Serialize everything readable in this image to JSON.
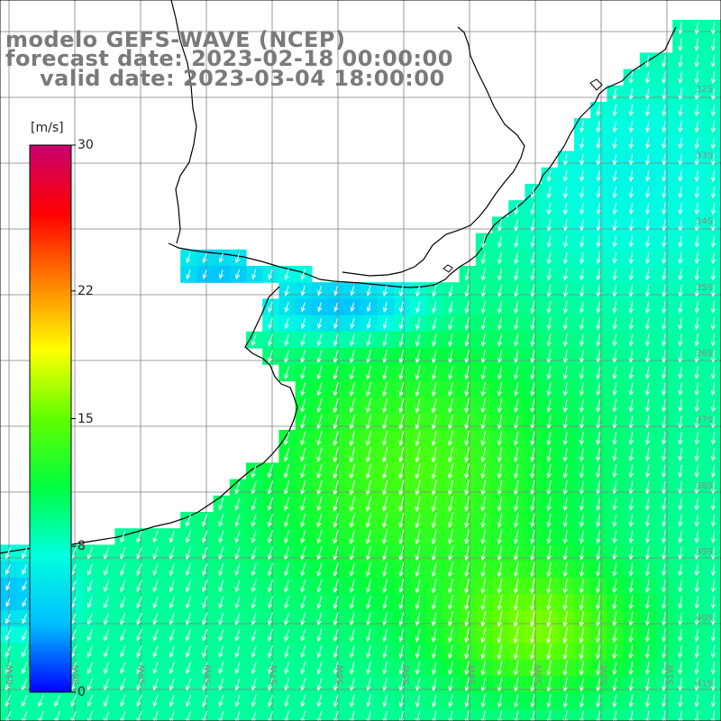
{
  "title": {
    "model": "modelo GEFS-WAVE (NCEP)",
    "forecast": "forecast date: 2023-02-18 00:00:00",
    "valid": "valid date: 2023-03-04 18:00:00"
  },
  "colorbar": {
    "unit": "[m/s]",
    "min": 0,
    "max": 30,
    "ticks": [
      {
        "value": 30,
        "label": "30"
      },
      {
        "value": 22,
        "label": "22"
      },
      {
        "value": 15,
        "label": "15"
      },
      {
        "value": 8,
        "label": "8"
      },
      {
        "value": 0,
        "label": "0"
      }
    ],
    "colors": [
      "#0000ff",
      "#00c0ff",
      "#00ffe0",
      "#00ff40",
      "#60ff00",
      "#ffff00",
      "#ff8000",
      "#ff0000",
      "#c8006e"
    ]
  },
  "axes": {
    "lon_labels": [
      "61W",
      "60W",
      "59W",
      "58W",
      "57W",
      "56W",
      "55W",
      "54W",
      "53W",
      "52W",
      "51W"
    ],
    "lat_labels": [
      "32S",
      "33S",
      "34S",
      "35S",
      "36S",
      "37S",
      "38S",
      "39S",
      "40S",
      "41S"
    ]
  },
  "colors": {
    "land": "#ffffff",
    "coast": "#000000",
    "grid": "#808080",
    "arrows": "#ffffff",
    "title_text": "#7a7a7a"
  }
}
